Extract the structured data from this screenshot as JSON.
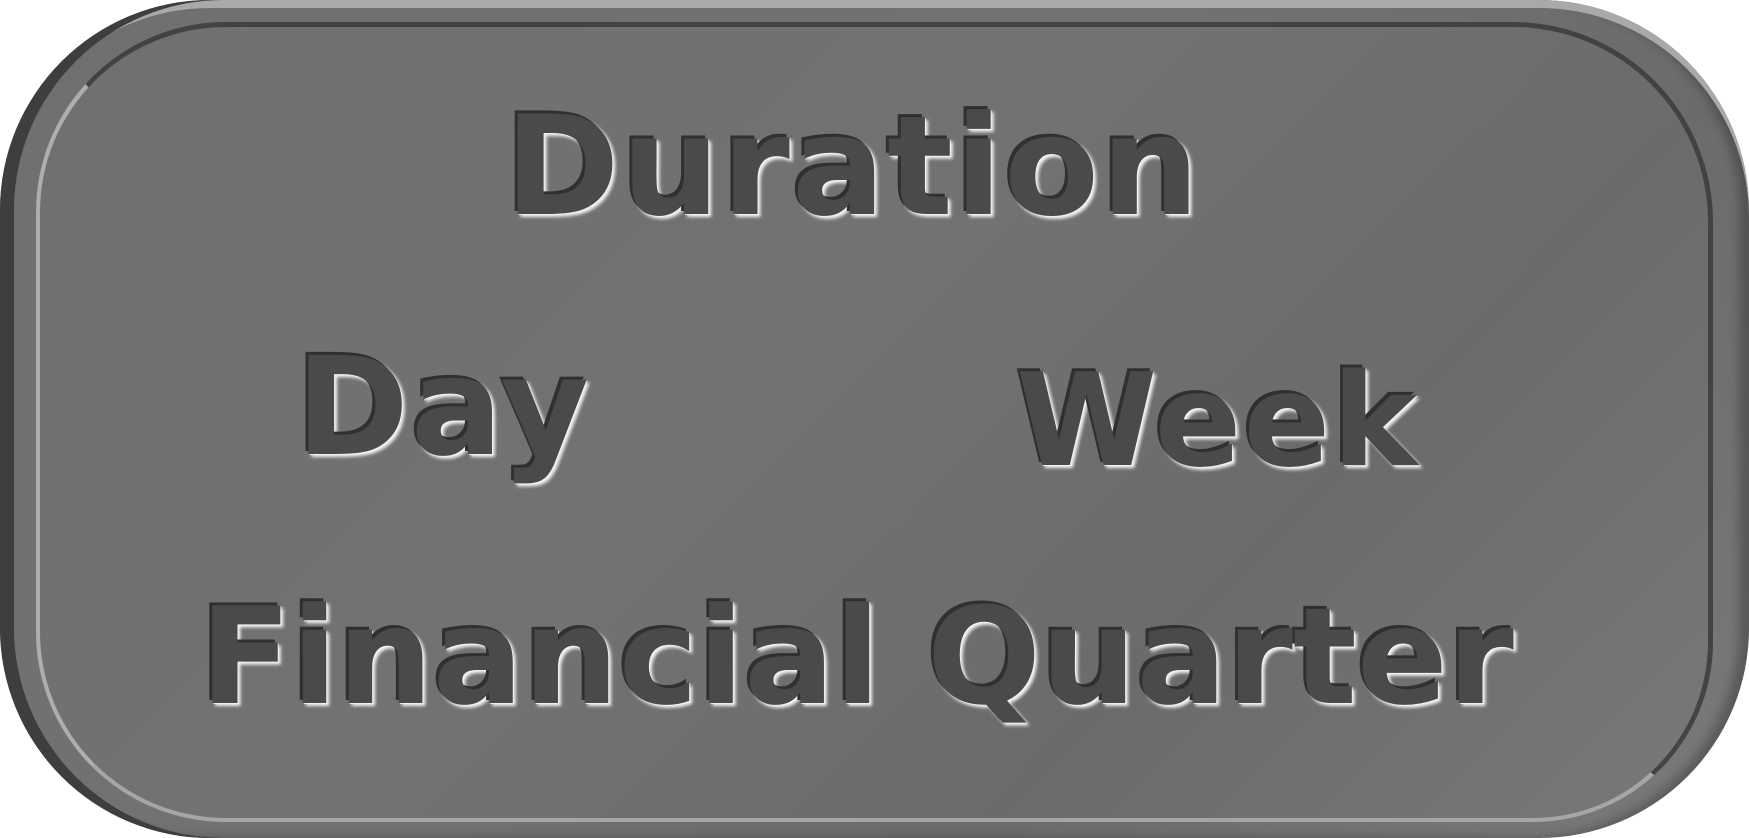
{
  "panel": {
    "title": "Duration",
    "options": [
      {
        "label": "Day"
      },
      {
        "label": "Week"
      },
      {
        "label": "Financial Quarter"
      }
    ]
  },
  "colors": {
    "panel_background": "#707070",
    "text": "#4a4a4a",
    "highlight": "#f2f2f2",
    "shadow": "#303030"
  }
}
